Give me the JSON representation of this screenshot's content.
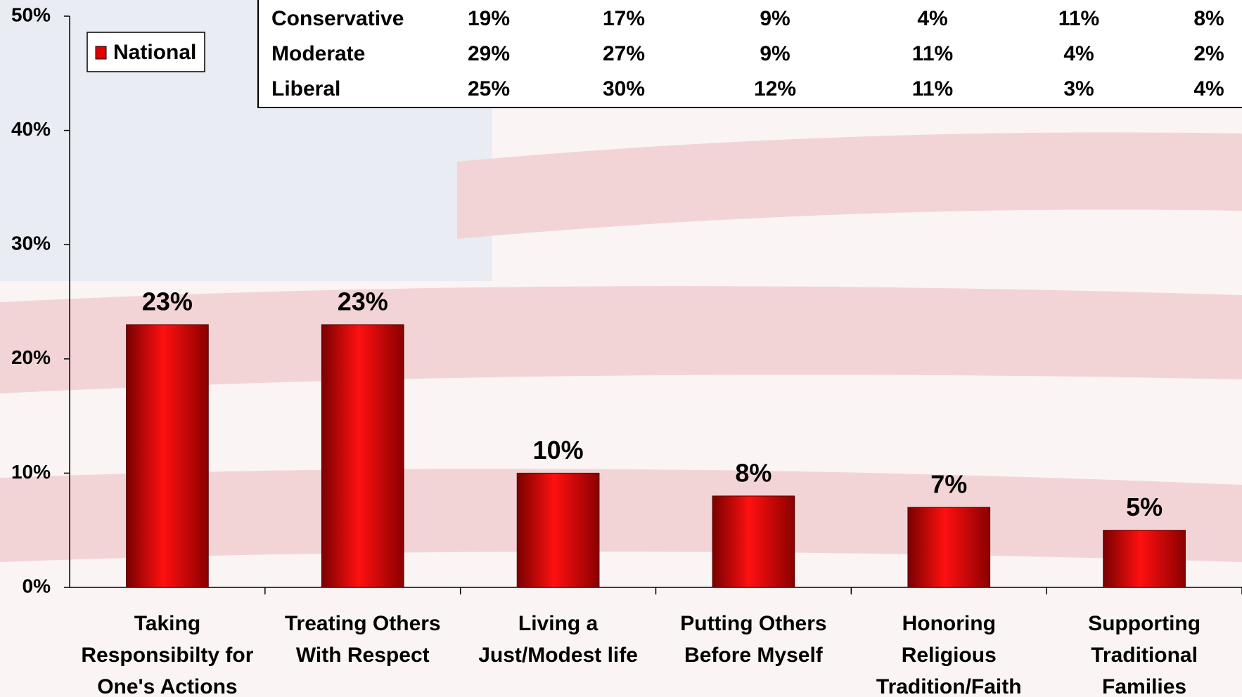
{
  "chart_data": {
    "type": "bar",
    "categories": [
      [
        "Taking",
        "Responsibilty for",
        "One's Actions"
      ],
      [
        "Treating Others",
        "With Respect"
      ],
      [
        "Living a",
        "Just/Modest life"
      ],
      [
        "Putting Others",
        "Before Myself"
      ],
      [
        "Honoring",
        "Religious",
        "Tradition/Faith"
      ],
      [
        "Supporting",
        "Traditional",
        "Families"
      ]
    ],
    "series": [
      {
        "name": "National",
        "color": "#e00000",
        "values": [
          23,
          23,
          10,
          8,
          7,
          5
        ],
        "value_labels": [
          "23%",
          "23%",
          "10%",
          "8%",
          "7%",
          "5%"
        ]
      }
    ],
    "ylim": [
      0,
      50
    ],
    "yticks": [
      {
        "value": 0,
        "label": "0%"
      },
      {
        "value": 10,
        "label": "10%"
      },
      {
        "value": 20,
        "label": "20%"
      },
      {
        "value": 30,
        "label": "30%"
      },
      {
        "value": 40,
        "label": "40%"
      },
      {
        "value": 50,
        "label": "50%"
      }
    ],
    "legend": "top-left"
  },
  "table": {
    "rows": [
      [
        "Conservative",
        "19%",
        "17%",
        "9%",
        "4%",
        "11%",
        "8%"
      ],
      [
        "Moderate",
        "29%",
        "27%",
        "9%",
        "11%",
        "4%",
        "2%"
      ],
      [
        "Liberal",
        "25%",
        "30%",
        "12%",
        "11%",
        "3%",
        "4%"
      ]
    ]
  }
}
